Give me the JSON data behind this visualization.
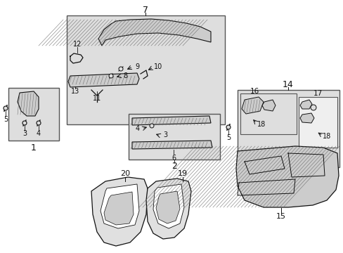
{
  "bg_color": "#ffffff",
  "box_fill": "#dedede",
  "box_edge": "#555555",
  "line_color": "#111111",
  "text_color": "#111111",
  "fig_w": 4.89,
  "fig_h": 3.6,
  "dpi": 100
}
